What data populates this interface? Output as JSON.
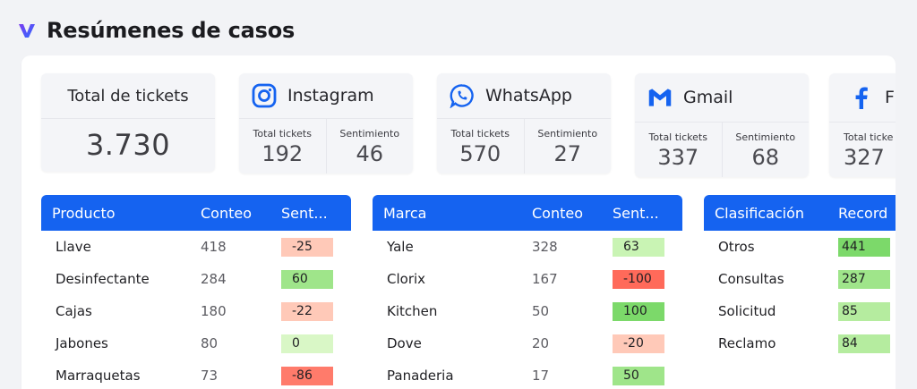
{
  "header": {
    "title": "Resúmenes de casos"
  },
  "total": {
    "label": "Total de tickets",
    "value": "3.730"
  },
  "channels": [
    {
      "name": "Instagram",
      "icon": "instagram-icon",
      "total_label": "Total tickets",
      "total": "192",
      "sentiment_label": "Sentimiento",
      "sentiment": "46"
    },
    {
      "name": "WhatsApp",
      "icon": "whatsapp-icon",
      "total_label": "Total tickets",
      "total": "570",
      "sentiment_label": "Sentimiento",
      "sentiment": "27"
    },
    {
      "name": "Gmail",
      "icon": "gmail-icon",
      "total_label": "Total tickets",
      "total": "337",
      "sentiment_label": "Sentimiento",
      "sentiment": "68"
    },
    {
      "name": "F",
      "icon": "facebook-icon",
      "total_label": "Total ticke",
      "total": "327"
    }
  ],
  "tables": {
    "producto": {
      "headers": [
        "Producto",
        "Conteo",
        "Sent..."
      ],
      "rows": [
        {
          "name": "Llave",
          "count": "418",
          "sent": "-25",
          "color": "#ffc9b8"
        },
        {
          "name": "Desinfectante",
          "count": "284",
          "sent": "60",
          "color": "#9fe58a"
        },
        {
          "name": "Cajas",
          "count": "180",
          "sent": "-22",
          "color": "#ffc9b8"
        },
        {
          "name": "Jabones",
          "count": "80",
          "sent": "0",
          "color": "#d9f7c6"
        },
        {
          "name": "Marraquetas",
          "count": "73",
          "sent": "-86",
          "color": "#ff7b6b"
        }
      ]
    },
    "marca": {
      "headers": [
        "Marca",
        "Conteo",
        "Sent..."
      ],
      "rows": [
        {
          "name": "Yale",
          "count": "328",
          "sent": "63",
          "color": "#c9f4b4"
        },
        {
          "name": "Clorix",
          "count": "167",
          "sent": "-100",
          "color": "#ff6a5a"
        },
        {
          "name": "Kitchen",
          "count": "50",
          "sent": "100",
          "color": "#7cd96a"
        },
        {
          "name": "Dove",
          "count": "20",
          "sent": "-20",
          "color": "#ffc9b8"
        },
        {
          "name": "Panaderia",
          "count": "17",
          "sent": "50",
          "color": "#9fe58a"
        }
      ]
    },
    "clasificacion": {
      "headers": [
        "Clasificación",
        "Record"
      ],
      "rows": [
        {
          "name": "Otros",
          "count": "441",
          "color": "#7cd96a"
        },
        {
          "name": "Consultas",
          "count": "287",
          "color": "#9fe58a"
        },
        {
          "name": "Solicitud",
          "count": "85",
          "color": "#b5ec9f"
        },
        {
          "name": "Reclamo",
          "count": "84",
          "color": "#b5ec9f"
        }
      ]
    }
  }
}
